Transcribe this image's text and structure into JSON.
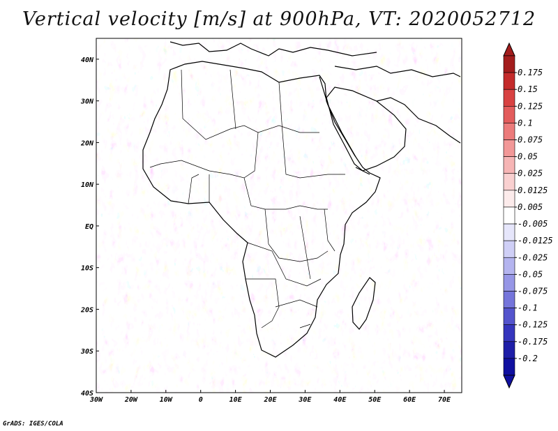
{
  "title": "Vertical velocity [m/s] at 900hPa, VT: 2020052712",
  "credit": "GrADS: IGES/COLA",
  "map": {
    "region": "Africa",
    "variable": "Vertical velocity",
    "units": "m/s",
    "level": "900hPa",
    "valid_time": "2020052712",
    "lon_range": [
      -30,
      75
    ],
    "lat_range": [
      -40,
      45
    ],
    "x_ticks": [
      "30W",
      "20W",
      "10W",
      "0",
      "10E",
      "20E",
      "30E",
      "40E",
      "50E",
      "60E",
      "70E"
    ],
    "y_ticks": [
      "40N",
      "30N",
      "20N",
      "10N",
      "EQ",
      "10S",
      "20S",
      "30S",
      "40S"
    ]
  },
  "colorbar": {
    "labels": [
      "0.175",
      "0.15",
      "0.125",
      "0.1",
      "0.075",
      "0.05",
      "0.025",
      "0.0125",
      "0.005",
      "-0.005",
      "-0.0125",
      "-0.025",
      "-0.05",
      "-0.075",
      "-0.1",
      "-0.125",
      "-0.175",
      "-0.2"
    ],
    "colors": [
      "#a31d1d",
      "#c42b2b",
      "#d84242",
      "#e35c5c",
      "#ec7b7b",
      "#f29898",
      "#f6b5b5",
      "#f9d0d0",
      "#fcebeb",
      "#ffffff",
      "#e6e6fb",
      "#cfcff6",
      "#b4b4ef",
      "#9696e6",
      "#7575db",
      "#5454cd",
      "#3535bd",
      "#1e1ea8",
      "#1010a0"
    ]
  }
}
